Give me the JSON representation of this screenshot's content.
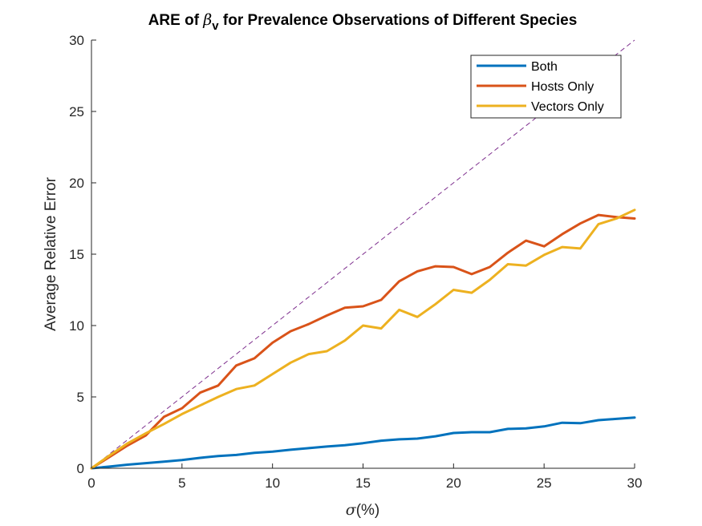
{
  "chart_data": {
    "type": "line",
    "title": {
      "prefix": "ARE of ",
      "symbol": "β",
      "subscript": "v",
      "suffix": " for Prevalence Observations of Different Species"
    },
    "xlabel": {
      "symbol": "σ",
      "text": "(%)"
    },
    "ylabel": "Average Relative Error",
    "xlim": [
      0,
      30
    ],
    "ylim": [
      0,
      30
    ],
    "xticks": [
      0,
      5,
      10,
      15,
      20,
      25,
      30
    ],
    "yticks": [
      0,
      5,
      10,
      15,
      20,
      25,
      30
    ],
    "grid": false,
    "legend_position": "top-right",
    "x": [
      0,
      1,
      2,
      3,
      4,
      5,
      6,
      7,
      8,
      9,
      10,
      11,
      12,
      13,
      14,
      15,
      16,
      17,
      18,
      19,
      20,
      21,
      22,
      23,
      24,
      25,
      26,
      27,
      28,
      29,
      30
    ],
    "series": [
      {
        "name": "Both",
        "color": "#0072BD",
        "values": [
          0,
          0.12,
          0.25,
          0.36,
          0.46,
          0.58,
          0.73,
          0.86,
          0.93,
          1.08,
          1.17,
          1.3,
          1.41,
          1.52,
          1.62,
          1.76,
          1.93,
          2.03,
          2.08,
          2.24,
          2.47,
          2.53,
          2.53,
          2.76,
          2.8,
          2.93,
          3.19,
          3.16,
          3.37,
          3.46,
          3.55
        ]
      },
      {
        "name": "Hosts Only",
        "color": "#D95319",
        "values": [
          0,
          0.8,
          1.6,
          2.3,
          3.6,
          4.2,
          5.3,
          5.8,
          7.2,
          7.7,
          8.8,
          9.6,
          10.1,
          10.7,
          11.25,
          11.35,
          11.8,
          13.1,
          13.8,
          14.15,
          14.1,
          13.6,
          14.1,
          15.1,
          15.95,
          15.55,
          16.4,
          17.15,
          17.75,
          17.6,
          17.5
        ]
      },
      {
        "name": "Vectors Only",
        "color": "#EDB120",
        "values": [
          0,
          0.9,
          1.75,
          2.45,
          3.1,
          3.8,
          4.4,
          5,
          5.55,
          5.8,
          6.6,
          7.4,
          8,
          8.2,
          8.95,
          10,
          9.8,
          11.1,
          10.6,
          11.5,
          12.5,
          12.3,
          13.2,
          14.3,
          14.2,
          14.95,
          15.5,
          15.4,
          17.1,
          17.5,
          18.1
        ]
      }
    ],
    "reference_line": {
      "x": [
        0,
        30
      ],
      "y": [
        0,
        30
      ],
      "color": "#7E2F8E",
      "style": "dashed"
    }
  }
}
